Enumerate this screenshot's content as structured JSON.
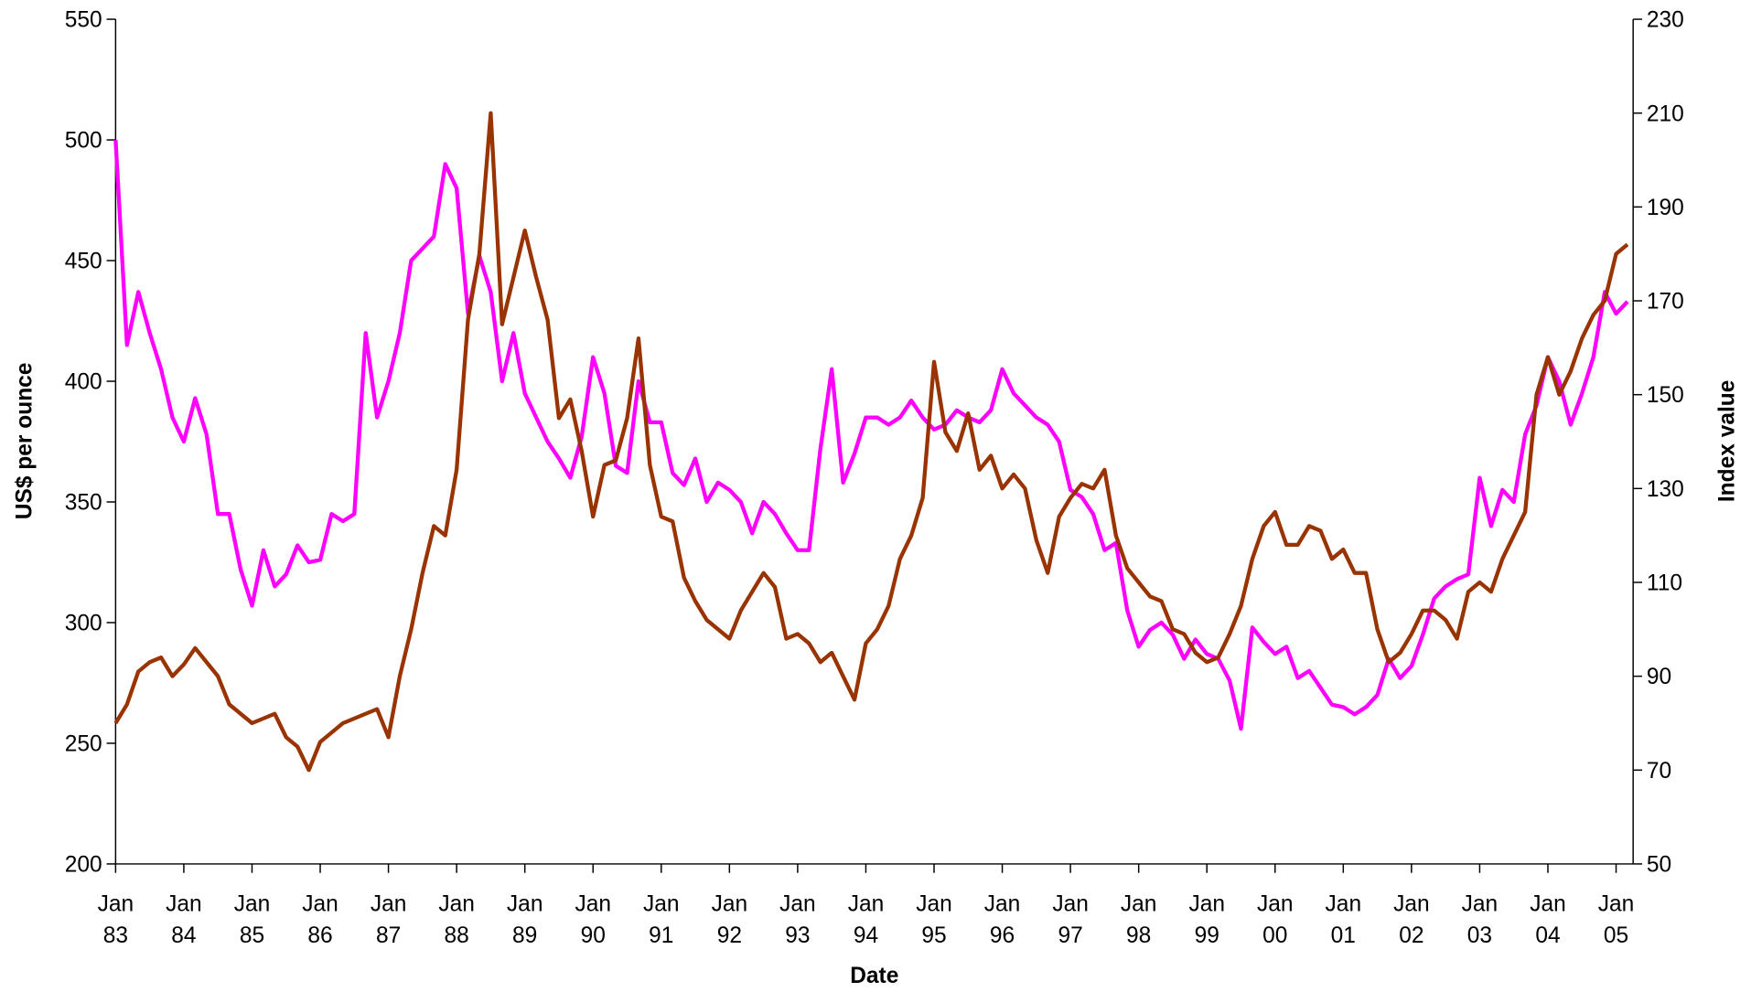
{
  "chart_data": {
    "type": "line",
    "xlabel": "Date",
    "ylabel": "US$ per ounce",
    "y2label": "Index value",
    "x": [
      "1983-01",
      "1983-03",
      "1983-05",
      "1983-07",
      "1983-09",
      "1983-11",
      "1984-01",
      "1984-03",
      "1984-05",
      "1984-07",
      "1984-09",
      "1984-11",
      "1985-01",
      "1985-03",
      "1985-05",
      "1985-07",
      "1985-09",
      "1985-11",
      "1986-01",
      "1986-03",
      "1986-05",
      "1986-07",
      "1986-09",
      "1986-11",
      "1987-01",
      "1987-03",
      "1987-05",
      "1987-07",
      "1987-09",
      "1987-11",
      "1988-01",
      "1988-03",
      "1988-05",
      "1988-07",
      "1988-09",
      "1988-11",
      "1989-01",
      "1989-03",
      "1989-05",
      "1989-07",
      "1989-09",
      "1989-11",
      "1990-01",
      "1990-03",
      "1990-05",
      "1990-07",
      "1990-09",
      "1990-11",
      "1991-01",
      "1991-03",
      "1991-05",
      "1991-07",
      "1991-09",
      "1991-11",
      "1992-01",
      "1992-03",
      "1992-05",
      "1992-07",
      "1992-09",
      "1992-11",
      "1993-01",
      "1993-03",
      "1993-05",
      "1993-07",
      "1993-09",
      "1993-11",
      "1994-01",
      "1994-03",
      "1994-05",
      "1994-07",
      "1994-09",
      "1994-11",
      "1995-01",
      "1995-03",
      "1995-05",
      "1995-07",
      "1995-09",
      "1995-11",
      "1996-01",
      "1996-03",
      "1996-05",
      "1996-07",
      "1996-09",
      "1996-11",
      "1997-01",
      "1997-03",
      "1997-05",
      "1997-07",
      "1997-09",
      "1997-11",
      "1998-01",
      "1998-03",
      "1998-05",
      "1998-07",
      "1998-09",
      "1998-11",
      "1999-01",
      "1999-03",
      "1999-05",
      "1999-07",
      "1999-09",
      "1999-11",
      "2000-01",
      "2000-03",
      "2000-05",
      "2000-07",
      "2000-09",
      "2000-11",
      "2001-01",
      "2001-03",
      "2001-05",
      "2001-07",
      "2001-09",
      "2001-11",
      "2002-01",
      "2002-03",
      "2002-05",
      "2002-07",
      "2002-09",
      "2002-11",
      "2003-01",
      "2003-03",
      "2003-05",
      "2003-07",
      "2003-09",
      "2003-11",
      "2004-01",
      "2004-03",
      "2004-05",
      "2004-07",
      "2004-09",
      "2004-11",
      "2005-01",
      "2005-03"
    ],
    "series": [
      {
        "color": "#ff00ff",
        "values": [
          500,
          415,
          437,
          420,
          405,
          385,
          375,
          393,
          378,
          345,
          345,
          322,
          307,
          330,
          315,
          320,
          332,
          325,
          326,
          345,
          342,
          345,
          420,
          385,
          400,
          420,
          450,
          455,
          460,
          490,
          480,
          428,
          452,
          437,
          400,
          420,
          395,
          385,
          375,
          368,
          360,
          377,
          410,
          395,
          365,
          362,
          400,
          383,
          383,
          362,
          357,
          368,
          350,
          358,
          355,
          350,
          337,
          350,
          345,
          337,
          330,
          330,
          372,
          405,
          358,
          370,
          385,
          385,
          382,
          385,
          392,
          385,
          380,
          382,
          388,
          385,
          383,
          388,
          405,
          395,
          390,
          385,
          382,
          375,
          355,
          352,
          345,
          330,
          333,
          305,
          290,
          297,
          300,
          295,
          285,
          293,
          287,
          285,
          276,
          256,
          298,
          292,
          287,
          290,
          277,
          280,
          273,
          266,
          265,
          262,
          265,
          270,
          285,
          277,
          282,
          295,
          310,
          315,
          318,
          320,
          360,
          340,
          355,
          350,
          378,
          390,
          410,
          400,
          382,
          395,
          410,
          437,
          428,
          433
        ]
      },
      {
        "color": "#993300",
        "axis": "y2",
        "values": [
          80,
          84,
          91,
          93,
          94,
          90,
          92.5,
          96,
          93,
          90,
          84,
          82,
          80,
          81,
          82,
          77,
          75,
          70,
          76,
          78,
          80,
          81,
          82,
          83,
          77,
          90,
          100,
          112,
          122,
          120,
          134,
          166,
          180,
          210,
          165,
          175,
          185,
          175,
          166,
          145,
          149,
          138,
          124,
          135,
          136,
          145,
          162,
          135,
          124,
          123,
          111,
          106,
          102,
          100,
          98,
          104,
          108,
          112,
          109,
          98,
          99,
          97,
          93,
          95,
          90,
          85,
          97,
          100,
          105,
          115,
          120,
          128,
          157,
          142,
          138,
          146,
          134,
          137,
          130,
          133,
          130,
          119,
          112,
          124,
          128,
          131,
          130,
          134,
          120,
          113,
          110,
          107,
          106,
          100,
          99,
          95,
          93,
          94,
          99,
          105,
          115,
          122,
          125,
          118,
          118,
          122,
          121,
          115,
          117,
          112,
          112,
          100,
          93,
          95,
          99,
          104,
          104,
          102,
          98,
          108,
          110,
          108,
          115,
          120,
          125,
          150,
          158,
          150,
          155,
          162,
          167,
          170,
          180,
          182
        ]
      }
    ],
    "xlim": [
      "1983-01",
      "2005-04"
    ],
    "xticks": [
      {
        "value": "1983-01",
        "label": "Jan 83"
      },
      {
        "value": "1984-01",
        "label": "Jan 84"
      },
      {
        "value": "1985-01",
        "label": "Jan 85"
      },
      {
        "value": "1986-01",
        "label": "Jan 86"
      },
      {
        "value": "1987-01",
        "label": "Jan 87"
      },
      {
        "value": "1988-01",
        "label": "Jan 88"
      },
      {
        "value": "1989-01",
        "label": "Jan 89"
      },
      {
        "value": "1990-01",
        "label": "Jan 90"
      },
      {
        "value": "1991-01",
        "label": "Jan 91"
      },
      {
        "value": "1992-01",
        "label": "Jan 92"
      },
      {
        "value": "1993-01",
        "label": "Jan 93"
      },
      {
        "value": "1994-01",
        "label": "Jan 94"
      },
      {
        "value": "1995-01",
        "label": "Jan 95"
      },
      {
        "value": "1996-01",
        "label": "Jan 96"
      },
      {
        "value": "1997-01",
        "label": "Jan 97"
      },
      {
        "value": "1998-01",
        "label": "Jan 98"
      },
      {
        "value": "1999-01",
        "label": "Jan 99"
      },
      {
        "value": "2000-01",
        "label": "Jan 00"
      },
      {
        "value": "2001-01",
        "label": "Jan 01"
      },
      {
        "value": "2002-01",
        "label": "Jan 02"
      },
      {
        "value": "2003-01",
        "label": "Jan 03"
      },
      {
        "value": "2004-01",
        "label": "Jan 04"
      },
      {
        "value": "2005-01",
        "label": "Jan 05"
      }
    ],
    "ylim": [
      200,
      550
    ],
    "yticks": [
      200,
      250,
      300,
      350,
      400,
      450,
      500,
      550
    ],
    "y2lim": [
      50,
      230
    ],
    "y2ticks": [
      50,
      70,
      90,
      110,
      130,
      150,
      170,
      190,
      210,
      230
    ],
    "grid": false
  }
}
